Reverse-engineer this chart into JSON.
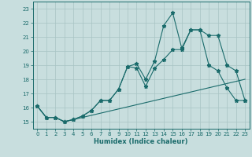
{
  "xlabel": "Humidex (Indice chaleur)",
  "bg_color": "#c8dede",
  "grid_color": "#a8c4c4",
  "line_color": "#1a6b6b",
  "xlim": [
    -0.5,
    23.5
  ],
  "ylim": [
    14.5,
    23.5
  ],
  "xticks": [
    0,
    1,
    2,
    3,
    4,
    5,
    6,
    7,
    8,
    9,
    10,
    11,
    12,
    13,
    14,
    15,
    16,
    17,
    18,
    19,
    20,
    21,
    22,
    23
  ],
  "yticks": [
    15,
    16,
    17,
    18,
    19,
    20,
    21,
    22,
    23
  ],
  "line1_x": [
    0,
    1,
    2,
    3,
    4,
    5,
    6,
    7,
    8,
    9,
    10,
    11,
    12,
    13,
    14,
    15,
    16,
    17,
    18,
    19,
    20,
    21,
    22,
    23
  ],
  "line1_y": [
    16.1,
    15.3,
    15.3,
    15.0,
    15.15,
    15.3,
    15.45,
    15.6,
    15.75,
    15.9,
    16.05,
    16.2,
    16.35,
    16.5,
    16.65,
    16.8,
    16.95,
    17.1,
    17.25,
    17.4,
    17.55,
    17.7,
    17.85,
    18.0
  ],
  "line2_x": [
    0,
    1,
    2,
    3,
    4,
    5,
    6,
    7,
    8,
    9,
    10,
    11,
    12,
    13,
    14,
    15,
    16,
    17,
    18,
    19,
    20,
    21,
    22,
    23
  ],
  "line2_y": [
    16.1,
    15.3,
    15.3,
    15.0,
    15.15,
    15.4,
    15.8,
    16.5,
    16.5,
    17.3,
    18.9,
    18.8,
    17.5,
    18.8,
    19.4,
    20.1,
    20.1,
    21.5,
    21.5,
    19.0,
    18.6,
    17.4,
    16.5,
    16.5
  ],
  "line3_x": [
    0,
    1,
    2,
    3,
    4,
    5,
    6,
    7,
    8,
    9,
    10,
    11,
    12,
    13,
    14,
    15,
    16,
    17,
    18,
    19,
    20,
    21,
    22,
    23
  ],
  "line3_y": [
    16.1,
    15.3,
    15.3,
    15.0,
    15.15,
    15.4,
    15.8,
    16.5,
    16.5,
    17.3,
    18.9,
    19.1,
    18.0,
    19.3,
    21.8,
    22.7,
    20.2,
    21.5,
    21.5,
    21.1,
    21.1,
    19.0,
    18.6,
    16.5
  ],
  "marker": "*",
  "markersize": 3.5
}
